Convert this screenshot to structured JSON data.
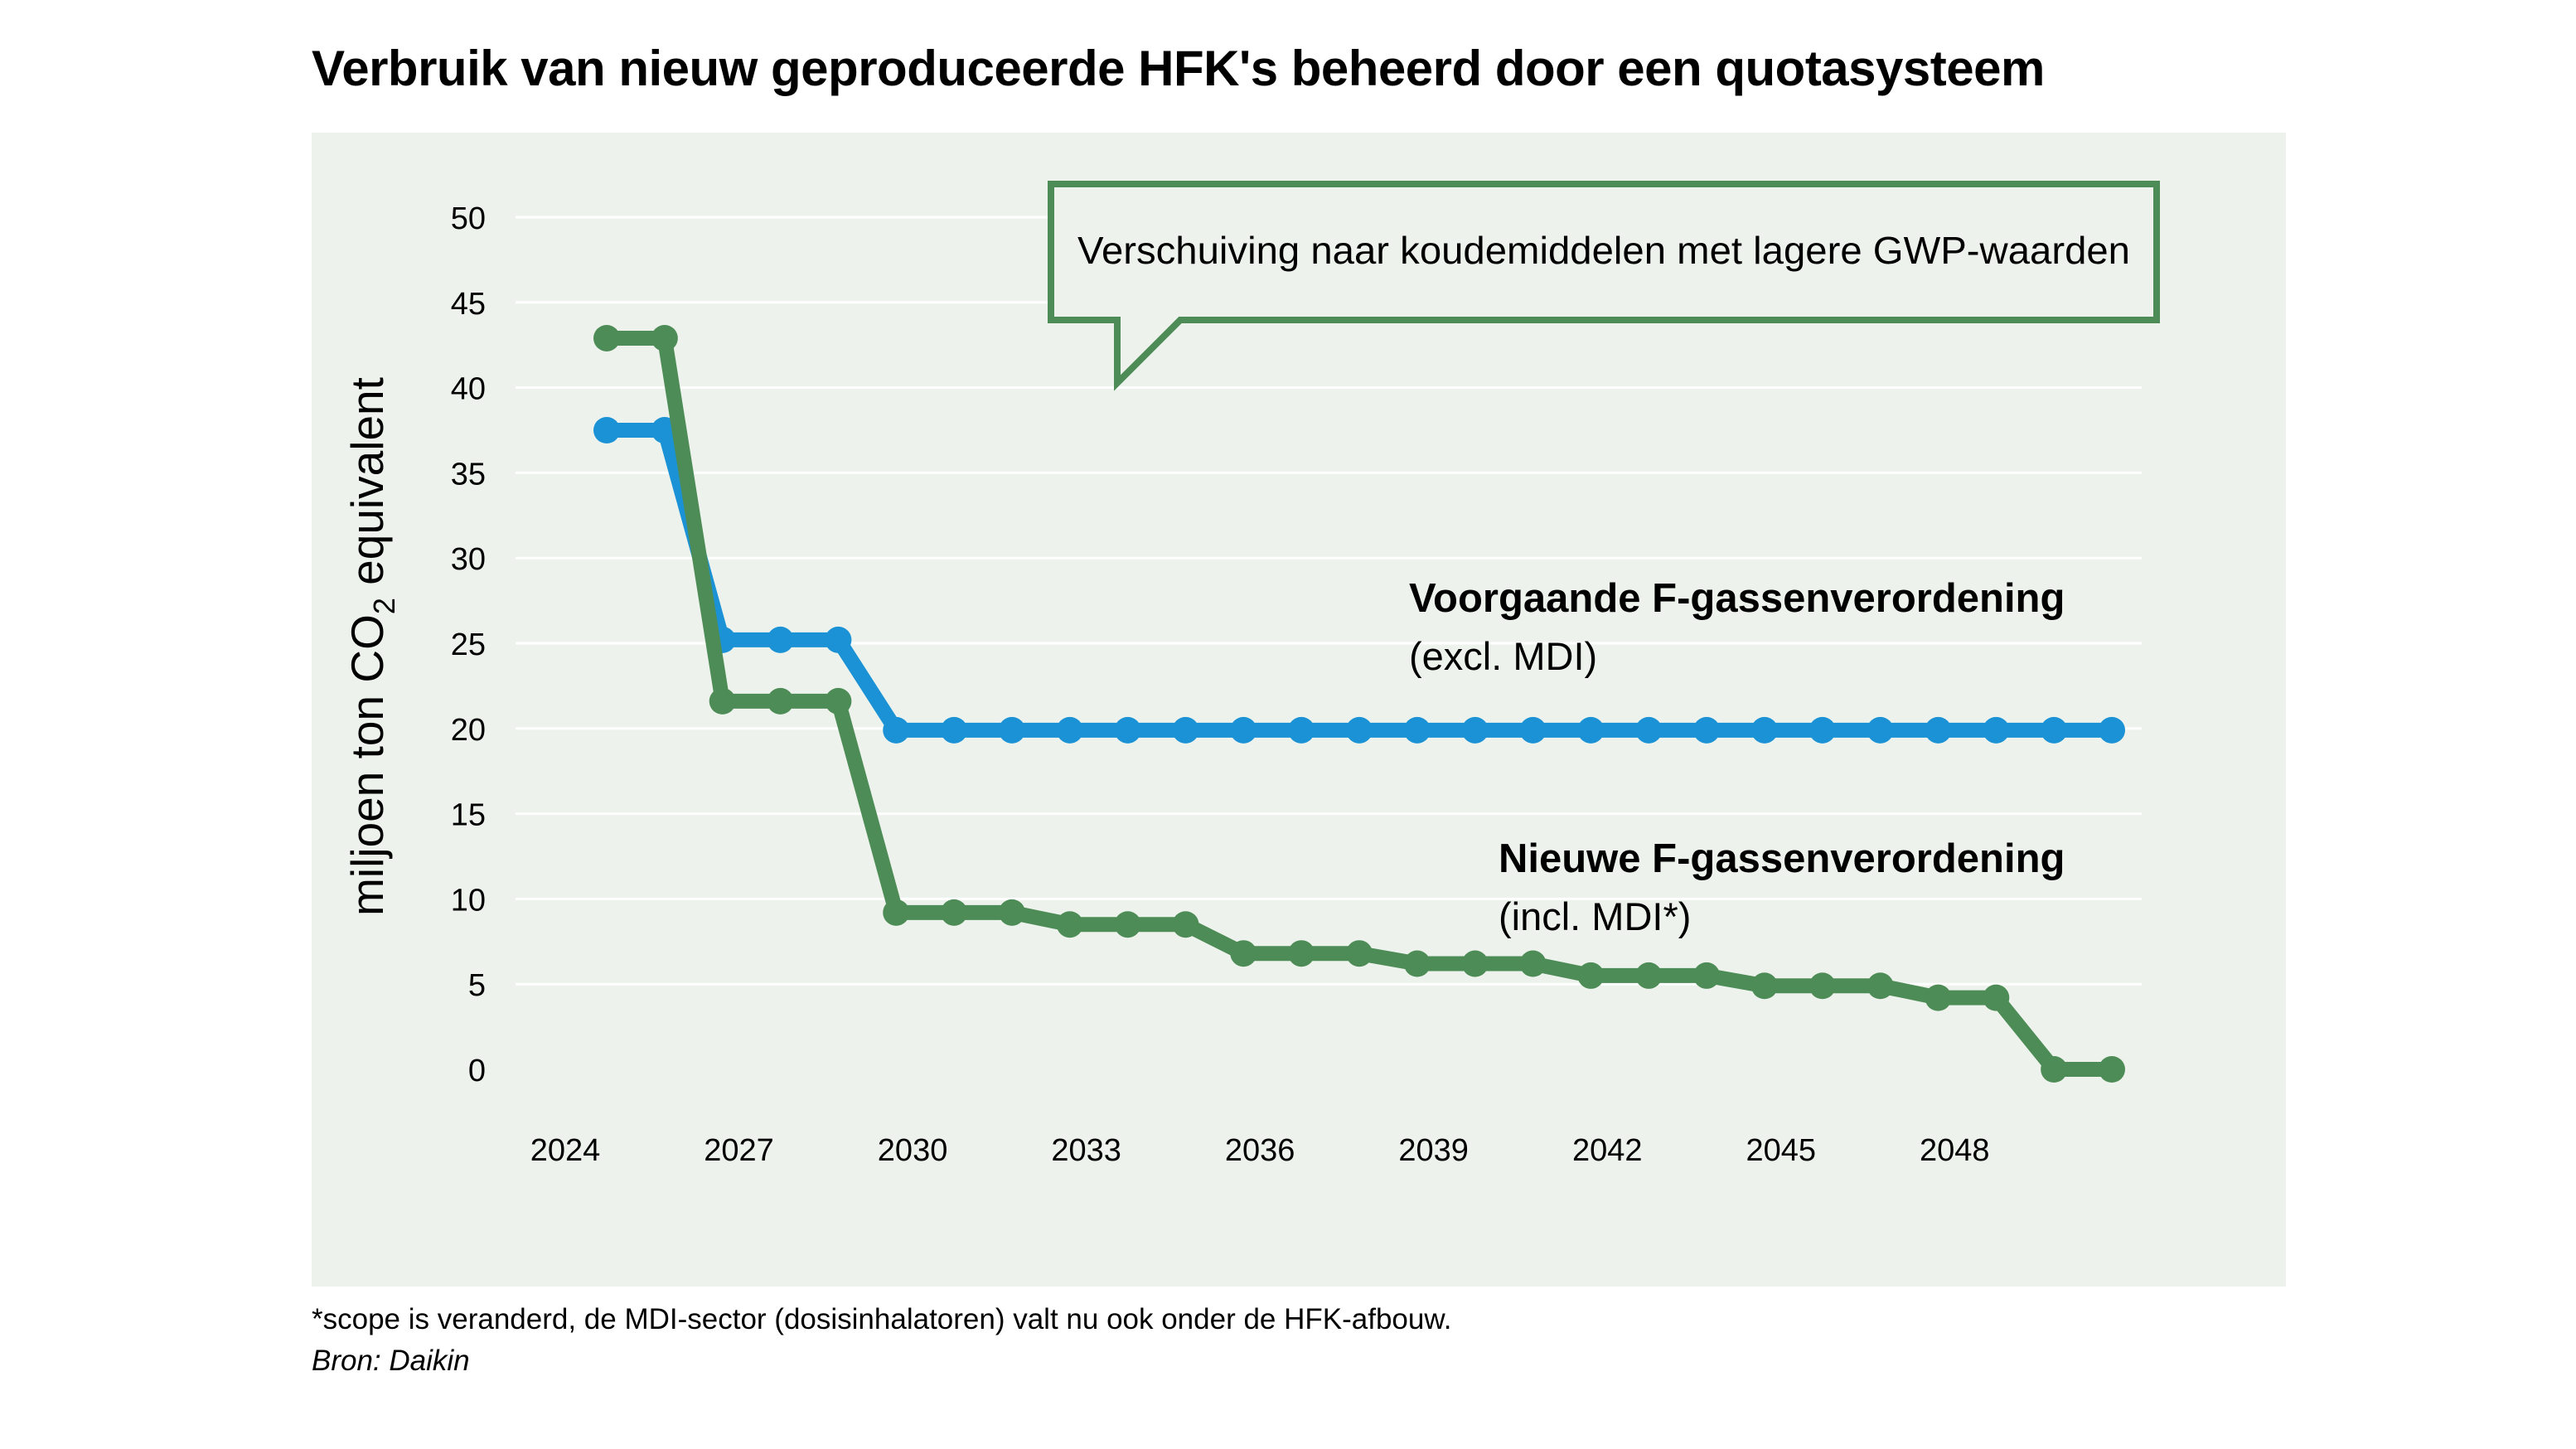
{
  "title": "Verbruik van nieuw geproduceerde HFK's beheerd door een quotasysteem",
  "footnote": "*scope is veranderd, de MDI-sector (dosisinhalatoren) valt nu ook onder de HFK-afbouw.",
  "source": "Bron: Daikin",
  "callout": "Verschuiving naar koudemiddelen met lagere GWP-waarden",
  "colors": {
    "panel_bg": "#edf3ec",
    "grid": "#ffffff",
    "previous": "#1a92d5",
    "new": "#4e8c57"
  },
  "chart_data": {
    "type": "line",
    "ylabel_main": "miljoen ton CO",
    "ylabel_sub": "2",
    "ylabel_rest": " equivalent",
    "ylim": [
      0,
      50
    ],
    "yticks": [
      0,
      5,
      10,
      15,
      20,
      25,
      30,
      35,
      40,
      45,
      50
    ],
    "xlim": [
      2024,
      2050
    ],
    "xticks": [
      2024,
      2027,
      2030,
      2033,
      2036,
      2039,
      2042,
      2045,
      2048
    ],
    "grid": true,
    "series": [
      {
        "key": "previous",
        "label_bold": "Voorgaande F-gassenverordening",
        "label_sub": "(excl. MDI)",
        "x": [
          2024,
          2025,
          2026,
          2027,
          2028,
          2029,
          2030,
          2031,
          2032,
          2033,
          2034,
          2035,
          2036,
          2037,
          2038,
          2039,
          2040,
          2041,
          2042,
          2043,
          2044,
          2045,
          2046,
          2047,
          2048,
          2049,
          2050
        ],
        "values": [
          37.5,
          37.5,
          25.2,
          25.2,
          25.2,
          19.9,
          19.9,
          19.9,
          19.9,
          19.9,
          19.9,
          19.9,
          19.9,
          19.9,
          19.9,
          19.9,
          19.9,
          19.9,
          19.9,
          19.9,
          19.9,
          19.9,
          19.9,
          19.9,
          19.9,
          19.9,
          19.9
        ]
      },
      {
        "key": "new",
        "label_bold": "Nieuwe F-gassenverordening",
        "label_sub": "(incl. MDI*)",
        "x": [
          2024,
          2025,
          2026,
          2027,
          2028,
          2029,
          2030,
          2031,
          2032,
          2033,
          2034,
          2035,
          2036,
          2037,
          2038,
          2039,
          2040,
          2041,
          2042,
          2043,
          2044,
          2045,
          2046,
          2047,
          2048,
          2049,
          2050
        ],
        "values": [
          42.9,
          42.9,
          21.6,
          21.6,
          21.6,
          9.2,
          9.2,
          9.2,
          8.5,
          8.5,
          8.5,
          6.8,
          6.8,
          6.8,
          6.2,
          6.2,
          6.2,
          5.5,
          5.5,
          5.5,
          4.9,
          4.9,
          4.9,
          4.2,
          4.2,
          0.0,
          0.0
        ]
      }
    ]
  }
}
